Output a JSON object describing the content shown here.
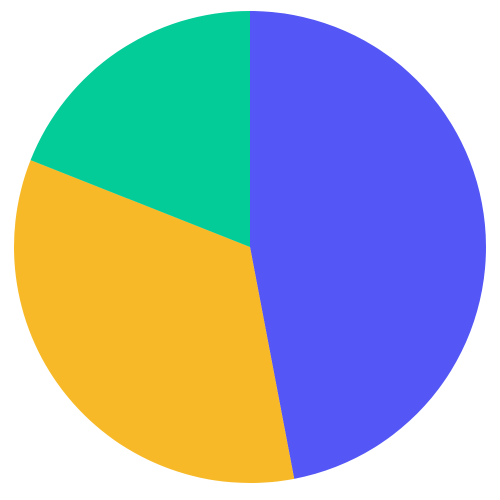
{
  "chart_data": {
    "type": "pie",
    "slices": [
      {
        "value": 47,
        "color": "#5457F5"
      },
      {
        "value": 34,
        "color": "#F7B928"
      },
      {
        "value": 19,
        "color": "#03CC99"
      }
    ],
    "start_angle_deg": 0,
    "direction": "clockwise"
  }
}
